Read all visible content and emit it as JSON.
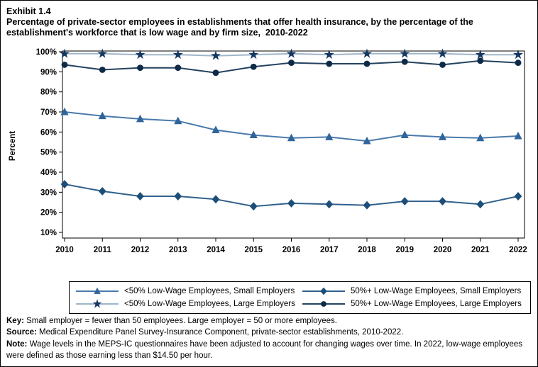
{
  "page": {
    "exhibit_label": "Exhibit 1.4",
    "title": "Percentage of private-sector employees in establishments that offer health insurance, by the percentage of the establishment's workforce that is low wage and by firm size,  2010-2022"
  },
  "chart_data": {
    "type": "line",
    "title": "Percentage of private-sector employees in establishments that offer health insurance, by the percentage of the establishment's workforce that is low wage and by firm size, 2010-2022",
    "xlabel": "",
    "ylabel": "Percent",
    "ylim": [
      10,
      100
    ],
    "yticks": [
      10,
      20,
      30,
      40,
      50,
      60,
      70,
      80,
      90,
      100
    ],
    "ytick_suffix": "%",
    "grid": "off",
    "legend_position": "bottom",
    "x": [
      2010,
      2011,
      2012,
      2013,
      2014,
      2015,
      2016,
      2017,
      2018,
      2019,
      2020,
      2021,
      2022
    ],
    "series": [
      {
        "name": "<50% Low-Wage Employees, Small Employers",
        "marker": "triangle",
        "line_color": "#4a7aac",
        "marker_color": "#30659b",
        "values": [
          70,
          68,
          66.5,
          65.5,
          61,
          58.5,
          57,
          57.5,
          55.5,
          58.5,
          57.5,
          57,
          58
        ]
      },
      {
        "name": "<50% Low-Wage Employees, Large Employers",
        "marker": "star",
        "line_color": "#9fb5ca",
        "marker_color": "#14365f",
        "values": [
          99,
          99,
          98.5,
          98.5,
          98,
          98.5,
          99,
          98.5,
          99,
          99,
          99,
          98.5,
          98.5
        ]
      },
      {
        "name": "50%+ Low-Wage Employees, Small Employers",
        "marker": "diamond",
        "line_color": "#30618c",
        "marker_color": "#1d4e78",
        "values": [
          34,
          30.5,
          28,
          28,
          26.5,
          23,
          24.5,
          24,
          23.5,
          25.5,
          25.5,
          24,
          28
        ]
      },
      {
        "name": "50%+ Low-Wage Employees, Large Employers",
        "marker": "circle",
        "line_color": "#24425f",
        "marker_color": "#0e2a47",
        "values": [
          93.5,
          91,
          92,
          92,
          89.5,
          92.5,
          94.5,
          94,
          94,
          95,
          93.5,
          95.5,
          94.5
        ]
      }
    ]
  },
  "footer": {
    "key_label": "Key:",
    "key_text": "Small employer = fewer than 50 employees. Large employer = 50 or more employees.",
    "source_label": "Source:",
    "source_text": "Medical Expenditure Panel Survey-Insurance Component, private-sector establishments, 2010-2022.",
    "note_label": "Note:",
    "note_text": "Wage levels in the MEPS-IC questionnaires have been adjusted to account for changing wages over time. In 2022, low-wage employees were defined as those earning less than $14.50 per hour."
  }
}
